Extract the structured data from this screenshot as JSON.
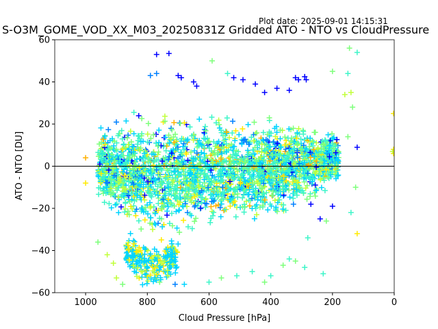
{
  "plot_date": "Plot date: 2025-09-01 14:15:31",
  "chart_data": {
    "type": "scatter",
    "title": "S-O3M_GOME_VOD_XX_M03_20250831Z Gridded ATO - NTO vs CloudPressure",
    "xlabel": "Cloud Pressure [hPa]",
    "ylabel": "ATO - NTO [DU]",
    "xlim": [
      1100,
      0
    ],
    "ylim": [
      -60,
      60
    ],
    "x_ticks": [
      1000,
      800,
      600,
      400,
      200,
      0
    ],
    "y_ticks": [
      -60,
      -40,
      -20,
      0,
      20,
      40,
      60
    ],
    "zero_line": 0,
    "marker": "plus",
    "grid": false,
    "colors": [
      "#0000ff",
      "#0080ff",
      "#00d4ff",
      "#3cf5c8",
      "#7dff7a",
      "#c0ff38",
      "#ffea00",
      "#ffb000"
    ],
    "clusters": [
      {
        "x": [
          960,
          880,
          820,
          760,
          700,
          640,
          580,
          520,
          460,
          400,
          340,
          300,
          260,
          220,
          180
        ],
        "y_low": [
          -22,
          -30,
          -35,
          -38,
          -36,
          -34,
          -33,
          -32,
          -30,
          -28,
          -26,
          -24,
          -20,
          -14,
          -8
        ],
        "y_high": [
          22,
          26,
          28,
          28,
          28,
          28,
          27,
          27,
          26,
          25,
          24,
          24,
          22,
          20,
          16
        ]
      },
      {
        "x": [
          870,
          820,
          780,
          740,
          700
        ],
        "y_low": [
          -50,
          -58,
          -59,
          -57,
          -52
        ],
        "y_high": [
          -30,
          -32,
          -34,
          -33,
          -32
        ]
      }
    ],
    "outliers": [
      {
        "x": 770,
        "y": 53,
        "c": 0
      },
      {
        "x": 730,
        "y": 53.5,
        "c": 0
      },
      {
        "x": 770,
        "y": 44,
        "c": 1
      },
      {
        "x": 790,
        "y": 43,
        "c": 1
      },
      {
        "x": 700,
        "y": 43,
        "c": 0
      },
      {
        "x": 690,
        "y": 42,
        "c": 0
      },
      {
        "x": 650,
        "y": 40,
        "c": 0
      },
      {
        "x": 640,
        "y": 38,
        "c": 0
      },
      {
        "x": 590,
        "y": 50,
        "c": 4
      },
      {
        "x": 540,
        "y": 44,
        "c": 3
      },
      {
        "x": 520,
        "y": 42,
        "c": 0
      },
      {
        "x": 490,
        "y": 41,
        "c": 0
      },
      {
        "x": 450,
        "y": 39,
        "c": 0
      },
      {
        "x": 420,
        "y": 35,
        "c": 0
      },
      {
        "x": 380,
        "y": 37,
        "c": 0
      },
      {
        "x": 340,
        "y": 36,
        "c": 0
      },
      {
        "x": 320,
        "y": 42,
        "c": 0
      },
      {
        "x": 310,
        "y": 41,
        "c": 0
      },
      {
        "x": 290,
        "y": 42.5,
        "c": 0
      },
      {
        "x": 285,
        "y": 41,
        "c": 0
      },
      {
        "x": 200,
        "y": 45,
        "c": 4
      },
      {
        "x": 145,
        "y": 56,
        "c": 4
      },
      {
        "x": 150,
        "y": 44,
        "c": 3
      },
      {
        "x": 120,
        "y": 54,
        "c": 3
      },
      {
        "x": 140,
        "y": 35,
        "c": 5
      },
      {
        "x": 160,
        "y": 34,
        "c": 5
      },
      {
        "x": 135,
        "y": 28,
        "c": 4
      },
      {
        "x": 120,
        "y": 9,
        "c": 0
      },
      {
        "x": 150,
        "y": 14,
        "c": 4
      },
      {
        "x": 2,
        "y": 25,
        "c": 6
      },
      {
        "x": 2,
        "y": 8,
        "c": 6
      },
      {
        "x": 2,
        "y": 6,
        "c": 6
      },
      {
        "x": 5,
        "y": 7,
        "c": 5
      },
      {
        "x": 120,
        "y": -32,
        "c": 6
      },
      {
        "x": 125,
        "y": -10,
        "c": 4
      },
      {
        "x": 140,
        "y": -22,
        "c": 3
      },
      {
        "x": 200,
        "y": -19,
        "c": 0
      },
      {
        "x": 220,
        "y": -26,
        "c": 4
      },
      {
        "x": 240,
        "y": -25,
        "c": 0
      },
      {
        "x": 270,
        "y": -18,
        "c": 0
      },
      {
        "x": 280,
        "y": -34,
        "c": 3
      },
      {
        "x": 230,
        "y": -51,
        "c": 3
      },
      {
        "x": 290,
        "y": -48,
        "c": 3
      },
      {
        "x": 320,
        "y": -45,
        "c": 4
      },
      {
        "x": 340,
        "y": -44,
        "c": 3
      },
      {
        "x": 360,
        "y": -47,
        "c": 4
      },
      {
        "x": 400,
        "y": -52,
        "c": 3
      },
      {
        "x": 420,
        "y": -55,
        "c": 4
      },
      {
        "x": 460,
        "y": -50,
        "c": 3
      },
      {
        "x": 510,
        "y": -52,
        "c": 3
      },
      {
        "x": 560,
        "y": -53,
        "c": 4
      },
      {
        "x": 600,
        "y": -55,
        "c": 3
      },
      {
        "x": 680,
        "y": -56,
        "c": 2
      },
      {
        "x": 710,
        "y": -56,
        "c": 1
      },
      {
        "x": 760,
        "y": -55,
        "c": 4
      },
      {
        "x": 880,
        "y": -56,
        "c": 4
      },
      {
        "x": 900,
        "y": -53,
        "c": 5
      },
      {
        "x": 930,
        "y": -42,
        "c": 5
      },
      {
        "x": 910,
        "y": -46,
        "c": 5
      },
      {
        "x": 960,
        "y": -36,
        "c": 4
      },
      {
        "x": 1000,
        "y": -8,
        "c": 6
      },
      {
        "x": 1000,
        "y": 4,
        "c": 7
      }
    ]
  }
}
